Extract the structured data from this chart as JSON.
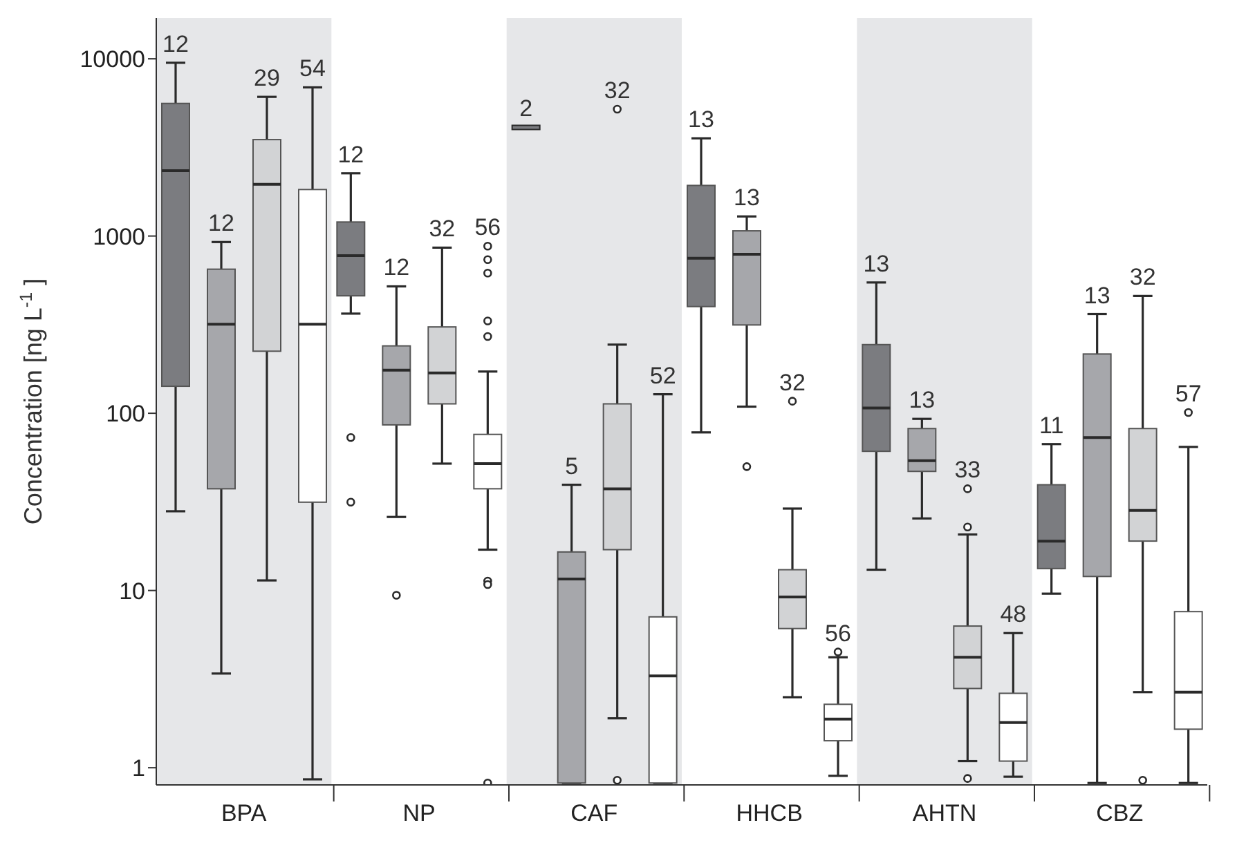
{
  "chart_data": {
    "type": "box",
    "ylabel": "Concentration [ng L$^{-1}$]",
    "categories": [
      "BPA",
      "NP",
      "CAF",
      "HHCB",
      "AHTN",
      "CBZ"
    ],
    "log": "y",
    "ylim": [
      0.8,
      17000
    ],
    "yticks": [
      1,
      10,
      100,
      1000,
      10000
    ],
    "bands": [
      {
        "axis": "x",
        "from": "BPA",
        "to": "BPA",
        "color": "#e6e7e9"
      },
      {
        "axis": "x",
        "from": "CAF",
        "to": "CAF",
        "color": "#e6e7e9"
      },
      {
        "axis": "x",
        "from": "AHTN",
        "to": "AHTN",
        "color": "#e6e7e9"
      }
    ],
    "series": [
      {
        "color": "#7b7c80",
        "value_labels": [
          "12",
          "12",
          "2",
          "13",
          "13",
          "11"
        ],
        "boxes": [
          {
            "low": 28,
            "q1": 142,
            "median": 2340,
            "q3": 5600,
            "high": 9500
          },
          {
            "low": 365,
            "q1": 460,
            "median": 775,
            "q3": 1200,
            "high": 2260,
            "outliers": [
              73,
              31.5
            ]
          },
          {
            "low": 4100,
            "q1": 4100,
            "median": 4100,
            "q3": 4100,
            "high": 4100
          },
          {
            "low": 78,
            "q1": 400,
            "median": 750,
            "q3": 1930,
            "high": 3560
          },
          {
            "low": 13.1,
            "q1": 61,
            "median": 107,
            "q3": 244,
            "high": 547
          },
          {
            "low": 9.6,
            "q1": 13.3,
            "median": 19,
            "q3": 39.5,
            "high": 67
          }
        ]
      },
      {
        "color": "#a6a7ab",
        "value_labels": [
          "12",
          "12",
          "5",
          "13",
          "13",
          "13"
        ],
        "boxes": [
          {
            "low": 3.4,
            "q1": 37.5,
            "median": 318,
            "q3": 650,
            "high": 925
          },
          {
            "low": 26,
            "q1": 86,
            "median": 175,
            "q3": 240,
            "high": 520,
            "outliers": [
              9.4
            ]
          },
          {
            "low": 0.82,
            "q1": 0.82,
            "median": 11.6,
            "q3": 16.5,
            "high": 39.5
          },
          {
            "low": 109,
            "q1": 315,
            "median": 790,
            "q3": 1070,
            "high": 1290,
            "outliers": [
              50
            ]
          },
          {
            "low": 25.5,
            "q1": 47,
            "median": 54,
            "q3": 82,
            "high": 93
          },
          {
            "low": 0.82,
            "q1": 12,
            "median": 73,
            "q3": 216,
            "high": 363
          }
        ]
      },
      {
        "color": "#d2d3d5",
        "value_labels": [
          "29",
          "32",
          "32",
          "32",
          "33",
          "32"
        ],
        "boxes": [
          {
            "low": 11.4,
            "q1": 224,
            "median": 1960,
            "q3": 3500,
            "high": 6100
          },
          {
            "low": 52,
            "q1": 113,
            "median": 169,
            "q3": 307,
            "high": 860
          },
          {
            "low": 1.9,
            "q1": 17,
            "median": 37.5,
            "q3": 113,
            "high": 244,
            "outliers": [
              5200,
              0.85
            ]
          },
          {
            "low": 2.5,
            "q1": 6.1,
            "median": 9.2,
            "q3": 13.1,
            "high": 29,
            "outliers": [
              117
            ]
          },
          {
            "low": 1.09,
            "q1": 2.8,
            "median": 4.2,
            "q3": 6.3,
            "high": 20.7,
            "outliers": [
              37.5,
              22.8,
              0.87
            ]
          },
          {
            "low": 2.67,
            "q1": 19,
            "median": 28.3,
            "q3": 82,
            "high": 459,
            "outliers": [
              0.85
            ]
          }
        ]
      },
      {
        "color": "#ffffff",
        "value_labels": [
          "54",
          "56",
          "52",
          "56",
          "48",
          "57"
        ],
        "boxes": [
          {
            "low": 0.86,
            "q1": 31.5,
            "median": 318,
            "q3": 1830,
            "high": 6900
          },
          {
            "low": 17,
            "q1": 37.5,
            "median": 52,
            "q3": 76,
            "high": 172,
            "outliers": [
              877,
              736,
              618,
              332,
              271,
              11.3,
              10.8,
              0.82
            ]
          },
          {
            "low": 0.82,
            "q1": 0.82,
            "median": 3.3,
            "q3": 7.1,
            "high": 128
          },
          {
            "low": 0.9,
            "q1": 1.42,
            "median": 1.88,
            "q3": 2.28,
            "high": 4.2,
            "outliers": [
              4.5
            ]
          },
          {
            "low": 0.89,
            "q1": 1.09,
            "median": 1.8,
            "q3": 2.63,
            "high": 5.75
          },
          {
            "low": 0.82,
            "q1": 1.65,
            "median": 2.67,
            "q3": 7.6,
            "high": 64.6,
            "outliers": [
              101
            ]
          }
        ]
      }
    ]
  }
}
